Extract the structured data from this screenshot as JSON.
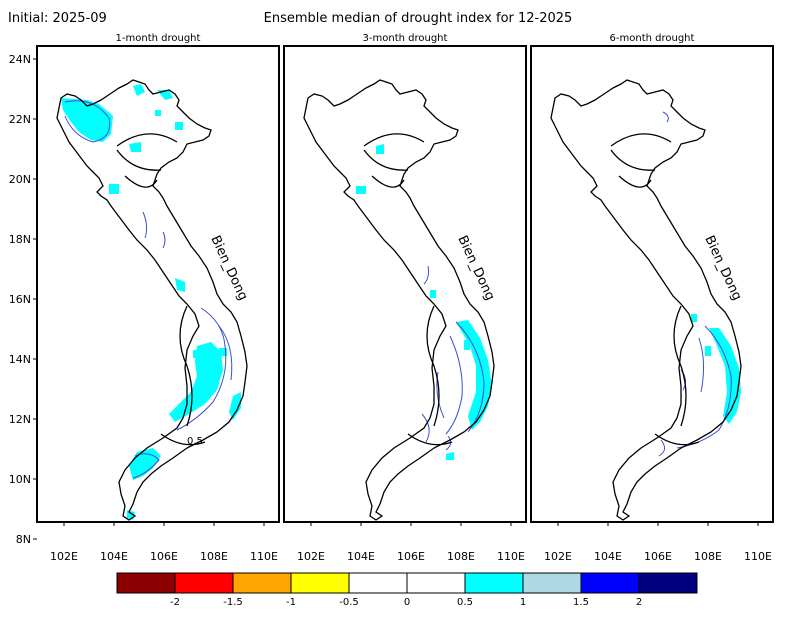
{
  "header": {
    "initial": "Initial: 2025-09",
    "title": "Ensemble median of drought index for 12-2025"
  },
  "panels": [
    {
      "title": "1-month drought"
    },
    {
      "title": "3-month drought"
    },
    {
      "title": "6-month drought"
    }
  ],
  "map": {
    "sea_label": "Bien_Dong",
    "lat_ticks": [
      "24N",
      "22N",
      "20N",
      "18N",
      "16N",
      "14N",
      "12N",
      "10N",
      "8N"
    ],
    "lon_ticks": [
      "102E",
      "104E",
      "106E",
      "108E",
      "110E"
    ],
    "contour_label": "0.5",
    "land_outline_color": "#000000",
    "contour_color": "#3a4fd6"
  },
  "legend": {
    "colors": [
      "#8b0000",
      "#ff0000",
      "#ffa500",
      "#ffff00",
      "#ffffff",
      "#ffffff",
      "#00ffff",
      "#add8e6",
      "#0000ff",
      "#000080"
    ],
    "labels": [
      "-2",
      "-1.5",
      "-1",
      "-0.5",
      "0",
      "0.5",
      "1",
      "1.5",
      "2"
    ]
  }
}
